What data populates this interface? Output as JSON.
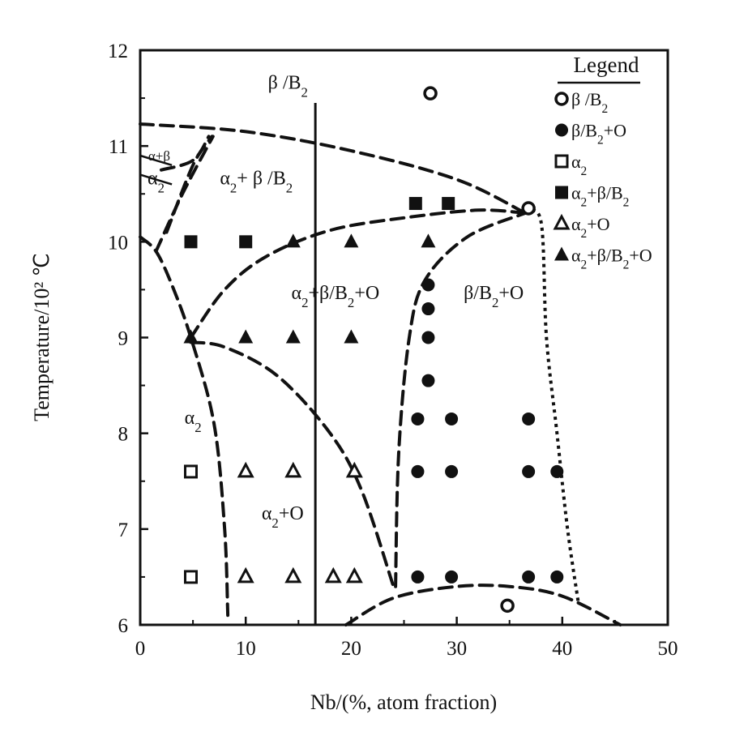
{
  "chart_data": {
    "type": "scatter",
    "xlabel": "Nb/(%, atom fraction)",
    "ylabel": "Temperature/10² ℃",
    "xlim": [
      0,
      50
    ],
    "ylim": [
      6,
      12
    ],
    "x_ticks": [
      "0",
      "10",
      "20",
      "30",
      "40",
      "50"
    ],
    "y_ticks": [
      "6",
      "7",
      "8",
      "9",
      "10",
      "11",
      "12"
    ],
    "grid": false,
    "legend_position": "top-right",
    "legend_title": "Legend",
    "region_labels": [
      {
        "text": "β /B₂",
        "x": 14,
        "y": 11.6
      },
      {
        "text": "α+β",
        "x": 1.8,
        "y": 10.85
      },
      {
        "text": "α₂",
        "x": 1.5,
        "y": 10.6
      },
      {
        "text": "α₂+ β /B₂",
        "x": 11,
        "y": 10.6
      },
      {
        "text": "α₂+β/B₂+O",
        "x": 18.5,
        "y": 9.4
      },
      {
        "text": "β/B₂+O",
        "x": 33.5,
        "y": 9.4
      },
      {
        "text": "α₂",
        "x": 5,
        "y": 8.1
      },
      {
        "text": "α₂+O",
        "x": 13.5,
        "y": 7.1
      }
    ],
    "boundary_lines": [
      {
        "style": "dashed",
        "points": [
          [
            0,
            11.23
          ],
          [
            10,
            11.15
          ],
          [
            20,
            10.95
          ],
          [
            30,
            10.65
          ],
          [
            36.5,
            10.3
          ]
        ]
      },
      {
        "style": "dashed",
        "points": [
          [
            2,
            10.75
          ],
          [
            5,
            10.85
          ],
          [
            6.5,
            11.1
          ]
        ]
      },
      {
        "style": "dashed",
        "points": [
          [
            2.5,
            10.1
          ],
          [
            5,
            10.8
          ],
          [
            6.8,
            11.1
          ]
        ]
      },
      {
        "style": "dashed",
        "points": [
          [
            1.5,
            9.9
          ],
          [
            4,
            10.5
          ],
          [
            6.9,
            11.1
          ]
        ]
      },
      {
        "style": "dashed",
        "points": [
          [
            0,
            10.05
          ],
          [
            1.5,
            9.9
          ],
          [
            3,
            9.55
          ],
          [
            4.8,
            9.0
          ],
          [
            7,
            8.1
          ],
          [
            8,
            7.0
          ],
          [
            8.3,
            6.1
          ]
        ]
      },
      {
        "style": "dashed",
        "points": [
          [
            4.8,
            9.0
          ],
          [
            8,
            9.5
          ],
          [
            12,
            9.85
          ],
          [
            18,
            10.12
          ],
          [
            25,
            10.25
          ],
          [
            32,
            10.33
          ],
          [
            36.5,
            10.3
          ]
        ]
      },
      {
        "style": "dashed",
        "points": [
          [
            4.8,
            8.95
          ],
          [
            8,
            8.9
          ],
          [
            13,
            8.6
          ],
          [
            18,
            8.0
          ],
          [
            21,
            7.4
          ],
          [
            24,
            6.4
          ]
        ]
      },
      {
        "style": "dashed",
        "points": [
          [
            24.2,
            6.4
          ],
          [
            24.5,
            7.8
          ],
          [
            25.5,
            9.0
          ],
          [
            27,
            9.6
          ],
          [
            31,
            10.05
          ],
          [
            36.5,
            10.3
          ]
        ]
      },
      {
        "style": "dashed",
        "points": [
          [
            19.5,
            6.0
          ],
          [
            24,
            6.28
          ],
          [
            30,
            6.4
          ],
          [
            35,
            6.4
          ],
          [
            40,
            6.3
          ],
          [
            45.5,
            6.0
          ]
        ]
      },
      {
        "style": "dotted",
        "points": [
          [
            36.5,
            10.3
          ],
          [
            38,
            10.2
          ],
          [
            38.5,
            9.0
          ],
          [
            39.5,
            8.0
          ],
          [
            40.5,
            7.0
          ],
          [
            41.5,
            6.25
          ]
        ]
      },
      {
        "style": "solid",
        "points": [
          [
            0,
            10.7
          ],
          [
            3,
            10.6
          ]
        ]
      },
      {
        "style": "solid",
        "points": [
          [
            0,
            10.9
          ],
          [
            3,
            10.8
          ]
        ]
      }
    ],
    "composition_line": {
      "x": 16.6,
      "y_range": [
        6,
        11.45
      ]
    },
    "series": [
      {
        "name": "β /B₂",
        "marker": "open-circle",
        "points": [
          [
            27.5,
            11.55
          ],
          [
            36.8,
            10.35
          ],
          [
            34.8,
            6.2
          ]
        ]
      },
      {
        "name": "β/B₂+O",
        "marker": "filled-circle",
        "points": [
          [
            27.3,
            9.55
          ],
          [
            27.3,
            9.3
          ],
          [
            27.3,
            9.0
          ],
          [
            27.3,
            8.55
          ],
          [
            26.3,
            8.15
          ],
          [
            29.5,
            8.15
          ],
          [
            36.8,
            8.15
          ],
          [
            26.3,
            7.6
          ],
          [
            29.5,
            7.6
          ],
          [
            36.8,
            7.6
          ],
          [
            39.5,
            7.6
          ],
          [
            26.3,
            6.5
          ],
          [
            29.5,
            6.5
          ],
          [
            36.8,
            6.5
          ],
          [
            39.5,
            6.5
          ]
        ]
      },
      {
        "name": "α₂",
        "marker": "open-square",
        "points": [
          [
            4.8,
            7.6
          ],
          [
            4.8,
            6.5
          ]
        ]
      },
      {
        "name": "α₂+β/B₂",
        "marker": "filled-square",
        "points": [
          [
            4.8,
            10.0
          ],
          [
            10,
            10.0
          ],
          [
            26.1,
            10.4
          ],
          [
            29.2,
            10.4
          ]
        ]
      },
      {
        "name": "α₂+O",
        "marker": "open-triangle",
        "points": [
          [
            10,
            7.6
          ],
          [
            14.5,
            7.6
          ],
          [
            20.3,
            7.6
          ],
          [
            10,
            6.5
          ],
          [
            14.5,
            6.5
          ],
          [
            18.3,
            6.5
          ],
          [
            20.3,
            6.5
          ]
        ]
      },
      {
        "name": "α₂+β/B₂+O",
        "marker": "filled-triangle",
        "points": [
          [
            14.5,
            10.0
          ],
          [
            20,
            10.0
          ],
          [
            27.3,
            10.0
          ],
          [
            4.8,
            9.0
          ],
          [
            10,
            9.0
          ],
          [
            14.5,
            9.0
          ],
          [
            20,
            9.0
          ]
        ]
      }
    ]
  }
}
